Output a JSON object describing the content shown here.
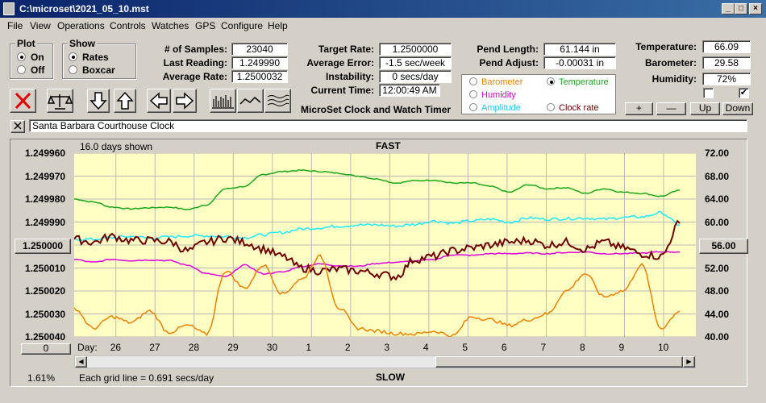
{
  "window": {
    "title": "C:\\microset\\2021_05_10.mst"
  },
  "menu": [
    "File",
    "View",
    "Operations",
    "Controls",
    "Watches",
    "GPS",
    "Configure",
    "Help"
  ],
  "plot_group": {
    "title": "Plot",
    "on": "On",
    "off": "Off"
  },
  "show_group": {
    "title": "Show",
    "rates": "Rates",
    "boxcar": "Boxcar"
  },
  "fields": {
    "samples_label": "# of Samples:",
    "samples": "23040",
    "last_label": "Last Reading:",
    "last": "1.249990",
    "avg_rate_label": "Average Rate:",
    "avg_rate": "1.2500032",
    "target_label": "Target Rate:",
    "target": "1.2500000",
    "avg_err_label": "Average Error:",
    "avg_err": "-1.5 sec/week",
    "instab_label": "Instability:",
    "instab": "0 secs/day",
    "time_label": "Current Time:",
    "time": "12:00:49 AM",
    "pend_len_label": "Pend Length:",
    "pend_len": "61.144 in",
    "pend_adj_label": "Pend Adjust:",
    "pend_adj": "-0.00031 in",
    "temp_label": "Temperature:",
    "temp": "66.09",
    "baro_label": "Barometer:",
    "baro": "29.58",
    "hum_label": "Humidity:",
    "hum": "72%"
  },
  "app_caption": "MicroSet Clock and Watch Timer",
  "display_select": {
    "barometer": "Barometer",
    "temperature": "Temperature",
    "humidity": "Humidity",
    "amplitude": "Amplitude",
    "clock_rate": "Clock rate"
  },
  "adjust_buttons": {
    "plus": "+",
    "minus": "—",
    "up": "Up",
    "down": "Down"
  },
  "clock_name": "Santa Barbara Courthouse Clock",
  "chart_header": {
    "days_shown": "16.0 days shown",
    "fast": "FAST",
    "slow": "SLOW"
  },
  "left_button": "1.250000",
  "right_button": "56.00",
  "bottom_left_button": "0",
  "day_label": "Day:",
  "grid_note": "Each grid line = 0.691 secs/day",
  "zoom": "1.61%",
  "colors": {
    "barometer": "#f08000",
    "temperature": "#1aa81a",
    "humidity": "#e000e0",
    "amplitude": "#20e8ff",
    "clock_rate": "#700000"
  },
  "chart_data": {
    "type": "line",
    "x_ticks": [
      "26",
      "27",
      "28",
      "29",
      "30",
      "1",
      "2",
      "3",
      "4",
      "5",
      "6",
      "7",
      "8",
      "9",
      "10"
    ],
    "y_left_ticks": [
      "1.249960",
      "1.249970",
      "1.249980",
      "1.249990",
      "1.250000",
      "1.250010",
      "1.250020",
      "1.250030",
      "1.250040"
    ],
    "y_right_ticks": [
      "72.00",
      "68.00",
      "64.00",
      "60.00",
      "56.00",
      "52.00",
      "48.00",
      "44.00",
      "40.00"
    ],
    "y_right_range": [
      40,
      72
    ],
    "x_range": [
      0,
      16
    ],
    "series": [
      {
        "name": "Temperature",
        "color": "#1aa81a",
        "x": [
          0,
          0.5,
          1,
          1.5,
          2,
          2.5,
          3,
          3.5,
          4,
          4.5,
          5,
          5.5,
          6,
          6.5,
          7,
          7.5,
          8,
          8.5,
          9,
          9.5,
          10,
          10.5,
          11,
          11.5,
          12,
          12.5,
          13,
          13.5,
          14,
          14.5,
          15,
          15.5,
          16
        ],
        "values": [
          64.0,
          63.5,
          62.6,
          62.3,
          62.5,
          62.6,
          62.2,
          63.0,
          65.8,
          66.2,
          68.3,
          68.8,
          69.0,
          68.8,
          68.5,
          68.0,
          67.5,
          66.8,
          67.2,
          67.3,
          66.8,
          66.8,
          66.2,
          65.2,
          66.5,
          65.8,
          66.0,
          65.0,
          65.8,
          65.2,
          65.0,
          64.5,
          65.5
        ]
      },
      {
        "name": "Amplitude",
        "color": "#20e8ff",
        "x": [
          0,
          0.5,
          1,
          1.5,
          2,
          2.5,
          3,
          3.5,
          4,
          4.5,
          5,
          5.5,
          6,
          6.5,
          7,
          7.5,
          8,
          8.5,
          9,
          9.5,
          10,
          10.5,
          11,
          11.5,
          12,
          12.5,
          13,
          13.5,
          14,
          14.5,
          15,
          15.5,
          16
        ],
        "values": [
          57.0,
          57.0,
          57.3,
          57.5,
          57.2,
          57.4,
          57.6,
          57.6,
          57.5,
          57.3,
          57.8,
          58.2,
          58.8,
          59.0,
          59.3,
          59.5,
          59.5,
          59.3,
          59.6,
          60.2,
          59.8,
          60.2,
          60.5,
          60.0,
          60.7,
          60.5,
          60.6,
          60.7,
          60.5,
          60.8,
          60.9,
          61.6,
          59.5
        ]
      },
      {
        "name": "Humidity",
        "color": "#e000e0",
        "x": [
          0,
          0.5,
          1,
          1.5,
          2,
          2.5,
          3,
          3.5,
          4,
          4.5,
          5,
          5.5,
          6,
          6.5,
          7,
          7.5,
          8,
          8.5,
          9,
          9.5,
          10,
          10.5,
          11,
          11.5,
          12,
          12.5,
          13,
          13.5,
          14,
          14.5,
          15,
          15.5,
          16
        ],
        "values": [
          53.5,
          53.0,
          53.5,
          53.3,
          53.4,
          53.3,
          52.5,
          51.0,
          50.5,
          52.5,
          51.0,
          51.3,
          52.3,
          52.7,
          52.4,
          52.3,
          52.8,
          53.0,
          53.2,
          53.5,
          54.3,
          54.2,
          54.5,
          54.5,
          54.6,
          54.5,
          54.7,
          54.8,
          54.5,
          54.5,
          54.6,
          54.8,
          54.8
        ]
      },
      {
        "name": "Clock rate",
        "color": "#700000",
        "x": [
          0,
          0.5,
          1,
          1.5,
          2,
          2.5,
          3,
          3.5,
          4,
          4.5,
          5,
          5.5,
          6,
          6.5,
          7,
          7.5,
          8,
          8.5,
          9,
          9.5,
          10,
          10.5,
          11,
          11.5,
          12,
          12.5,
          13,
          13.5,
          14,
          14.5,
          15,
          15.5,
          16
        ],
        "values": [
          57.0,
          56.5,
          57.5,
          56.8,
          56.8,
          56.6,
          55.0,
          56.5,
          57.2,
          56.5,
          55.3,
          54.0,
          52.0,
          51.5,
          51.8,
          51.5,
          51.0,
          50.5,
          53.5,
          54.0,
          55.0,
          55.5,
          56.0,
          56.5,
          56.8,
          56.0,
          56.5,
          55.3,
          56.5,
          55.5,
          54.5,
          54.0,
          59.8
        ]
      },
      {
        "name": "Barometer",
        "color": "#f08000",
        "x": [
          0,
          0.5,
          1,
          1.5,
          2,
          2.5,
          3,
          3.5,
          4,
          4.5,
          5,
          5.5,
          6,
          6.5,
          7,
          7.5,
          8,
          8.5,
          9,
          9.5,
          10,
          10.5,
          11,
          11.5,
          12,
          12.5,
          13,
          13.5,
          14,
          14.5,
          15,
          15.5,
          16
        ],
        "values": [
          45.0,
          41.5,
          43.5,
          42.5,
          44.5,
          40.8,
          42.0,
          40.5,
          51.5,
          48.5,
          52.5,
          47.5,
          50.0,
          54.0,
          45.0,
          41.5,
          41.0,
          40.6,
          40.5,
          41.0,
          40.2,
          43.5,
          43.0,
          42.0,
          43.0,
          44.0,
          48.0,
          51.0,
          47.0,
          48.0,
          52.5,
          41.5,
          44.5
        ]
      }
    ]
  }
}
